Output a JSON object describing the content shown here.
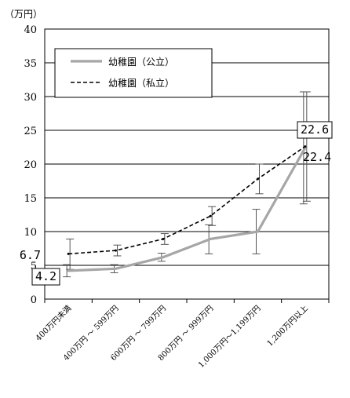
{
  "chart_data": {
    "type": "line",
    "unit_label": "（万円）",
    "categories": [
      "400万円未満",
      "400万円 ～ 599万円",
      "600万円 ～ 799万円",
      "800万円 ～ 999万円",
      "1,000万円～1,199万円",
      "1,200万円以上"
    ],
    "ylim": [
      0,
      40
    ],
    "yticks": [
      0,
      5,
      10,
      15,
      20,
      25,
      30,
      35,
      40
    ],
    "grid": true,
    "legend_position": "top-left",
    "series": [
      {
        "name": "幼稚園（公立）",
        "color": "#a6a6a6",
        "style": "solid",
        "values": [
          4.2,
          4.5,
          6.2,
          8.9,
          10.0,
          22.4
        ],
        "error_low": [
          3.3,
          3.9,
          5.6,
          6.7,
          6.7,
          14.1
        ],
        "error_high": [
          5.1,
          5.1,
          6.8,
          11.0,
          13.3,
          30.7
        ]
      },
      {
        "name": "幼稚園（私立）",
        "color": "#000000",
        "style": "dashed",
        "values": [
          6.7,
          7.2,
          8.9,
          12.3,
          17.8,
          22.6
        ],
        "error_low": [
          4.4,
          6.4,
          8.1,
          10.9,
          15.6,
          14.5
        ],
        "error_high": [
          8.9,
          8.0,
          9.7,
          13.7,
          20.0,
          30.7
        ]
      }
    ],
    "annotations": [
      {
        "text": "6.7",
        "series": 1,
        "index": 0
      },
      {
        "text": "4.2",
        "series": 0,
        "index": 0,
        "boxed": true
      },
      {
        "text": "22.6",
        "series": 1,
        "index": 5,
        "boxed": true
      },
      {
        "text": "22.4",
        "series": 0,
        "index": 5
      }
    ]
  }
}
